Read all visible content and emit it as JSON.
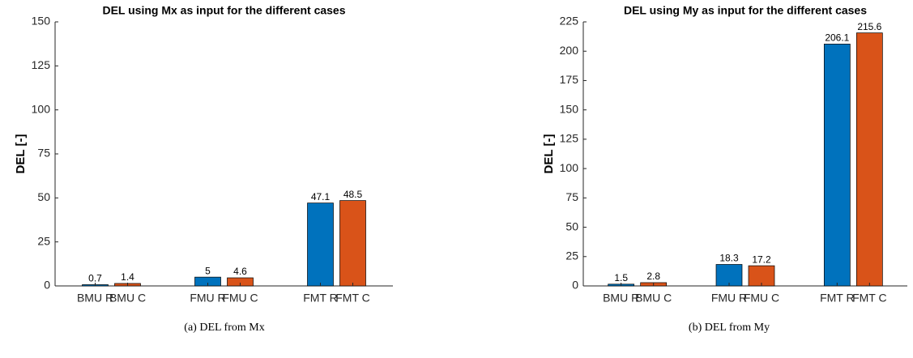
{
  "chart_data": [
    {
      "type": "bar",
      "title": "DEL using Mx as input for the different cases",
      "ylabel": "DEL [-]",
      "caption": "(a) DEL from Mx",
      "categories": [
        "BMU R",
        "BMU C",
        "FMU R",
        "FMU C",
        "FMT R",
        "FMT C"
      ],
      "values": [
        0.7,
        1.4,
        5,
        4.6,
        47.1,
        48.5
      ],
      "colors": [
        "#0072bd",
        "#d95319",
        "#0072bd",
        "#d95319",
        "#0072bd",
        "#d95319"
      ],
      "ylim": [
        0,
        150
      ],
      "yticks": [
        0,
        25,
        50,
        75,
        100,
        125,
        150
      ]
    },
    {
      "type": "bar",
      "title": "DEL using My as input for the different cases",
      "ylabel": "DEL [-]",
      "caption": "(b) DEL from My",
      "categories": [
        "BMU R",
        "BMU C",
        "FMU R",
        "FMU C",
        "FMT R",
        "FMT C"
      ],
      "values": [
        1.5,
        2.8,
        18.3,
        17.2,
        206.1,
        215.6
      ],
      "colors": [
        "#0072bd",
        "#d95319",
        "#0072bd",
        "#d95319",
        "#0072bd",
        "#d95319"
      ],
      "ylim": [
        0,
        225
      ],
      "yticks": [
        0,
        25,
        50,
        75,
        100,
        125,
        150,
        175,
        200,
        225
      ]
    }
  ]
}
